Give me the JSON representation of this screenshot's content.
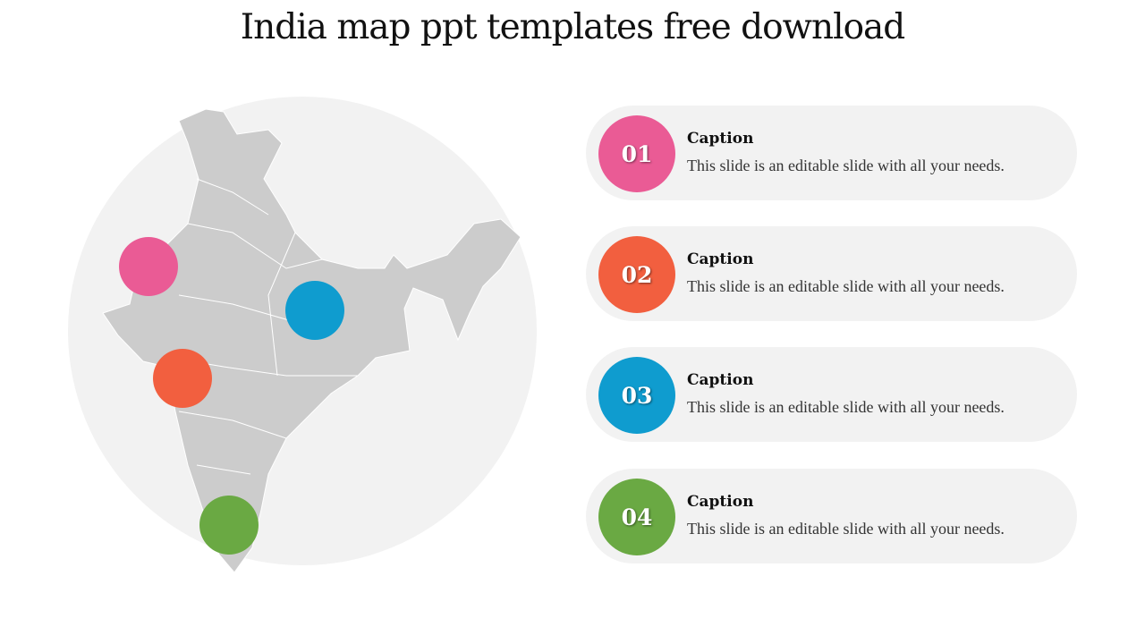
{
  "title": "India map ppt templates free download",
  "items": [
    {
      "number": "01",
      "caption": "Caption",
      "text": "This slide is an editable slide with all your needs.",
      "color": "#ea5b95"
    },
    {
      "number": "02",
      "caption": "Caption",
      "text": "This slide is an editable slide with all your needs.",
      "color": "#f25f3f"
    },
    {
      "number": "03",
      "caption": "Caption",
      "text": "This slide is an editable slide with all your needs.",
      "color": "#0f9ccf"
    },
    {
      "number": "04",
      "caption": "Caption",
      "text": "This slide is an editable slide with all your needs.",
      "color": "#6aa943"
    }
  ],
  "map": {
    "fill": "#cccccc",
    "background": "#f2f2f2"
  }
}
